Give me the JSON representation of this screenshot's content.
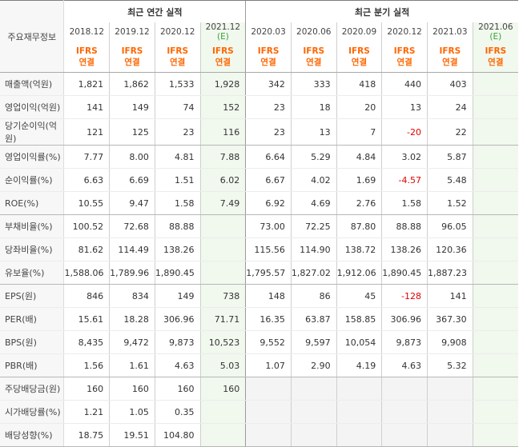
{
  "header": {
    "label_title": "주요재무정보",
    "annual_group": "최근 연간 실적",
    "quarter_group": "최근 분기 실적",
    "ifrs_line1": "IFRS",
    "ifrs_line2": "연결",
    "annual_periods": [
      "2018.12",
      "2019.12",
      "2020.12",
      "2021.12"
    ],
    "annual_est_suffix": "(E)",
    "quarter_periods": [
      "2020.03",
      "2020.06",
      "2020.09",
      "2020.12",
      "2021.03",
      "2021.06"
    ],
    "quarter_est_suffix": "(E)"
  },
  "rows": [
    {
      "label": "매출액(억원)",
      "values": [
        "1,821",
        "1,862",
        "1,533",
        "1,928",
        "342",
        "333",
        "418",
        "440",
        "403",
        ""
      ]
    },
    {
      "label": "영업이익(억원)",
      "values": [
        "141",
        "149",
        "74",
        "152",
        "23",
        "18",
        "20",
        "13",
        "24",
        ""
      ]
    },
    {
      "label": "당기순이익(억원)",
      "values": [
        "121",
        "125",
        "23",
        "116",
        "23",
        "13",
        "7",
        "-20",
        "22",
        ""
      ]
    },
    {
      "label": "영업이익률(%)",
      "values": [
        "7.77",
        "8.00",
        "4.81",
        "7.88",
        "6.64",
        "5.29",
        "4.84",
        "3.02",
        "5.87",
        ""
      ]
    },
    {
      "label": "순이익률(%)",
      "values": [
        "6.63",
        "6.69",
        "1.51",
        "6.02",
        "6.67",
        "4.02",
        "1.69",
        "-4.57",
        "5.48",
        ""
      ]
    },
    {
      "label": "ROE(%)",
      "values": [
        "10.55",
        "9.47",
        "1.58",
        "7.49",
        "6.92",
        "4.69",
        "2.76",
        "1.58",
        "1.52",
        ""
      ]
    },
    {
      "label": "부채비율(%)",
      "values": [
        "100.52",
        "72.68",
        "88.88",
        "",
        "73.00",
        "72.25",
        "87.80",
        "88.88",
        "96.05",
        ""
      ]
    },
    {
      "label": "당좌비율(%)",
      "values": [
        "81.62",
        "114.49",
        "138.26",
        "",
        "115.56",
        "114.90",
        "138.72",
        "138.26",
        "120.36",
        ""
      ]
    },
    {
      "label": "유보율(%)",
      "values": [
        "1,588.06",
        "1,789.96",
        "1,890.45",
        "",
        "1,795.57",
        "1,827.02",
        "1,912.06",
        "1,890.45",
        "1,887.23",
        ""
      ]
    },
    {
      "label": "EPS(원)",
      "values": [
        "846",
        "834",
        "149",
        "738",
        "148",
        "86",
        "45",
        "-128",
        "141",
        ""
      ]
    },
    {
      "label": "PER(배)",
      "values": [
        "15.61",
        "18.28",
        "306.96",
        "71.71",
        "16.35",
        "63.87",
        "158.85",
        "306.96",
        "367.30",
        ""
      ]
    },
    {
      "label": "BPS(원)",
      "values": [
        "8,435",
        "9,472",
        "9,873",
        "10,523",
        "9,552",
        "9,597",
        "10,054",
        "9,873",
        "9,908",
        ""
      ]
    },
    {
      "label": "PBR(배)",
      "values": [
        "1.56",
        "1.61",
        "4.63",
        "5.03",
        "1.07",
        "2.90",
        "4.19",
        "4.63",
        "5.32",
        ""
      ]
    },
    {
      "label": "주당배당금(원)",
      "values": [
        "160",
        "160",
        "160",
        "160",
        "",
        "",
        "",
        "",
        "",
        ""
      ]
    },
    {
      "label": "시가배당률(%)",
      "values": [
        "1.21",
        "1.05",
        "0.35",
        "",
        "",
        "",
        "",
        "",
        "",
        ""
      ]
    },
    {
      "label": "배당성향(%)",
      "values": [
        "18.75",
        "19.51",
        "104.80",
        "",
        "",
        "",
        "",
        "",
        "",
        ""
      ]
    }
  ],
  "colors": {
    "ifrs": "#ff6600",
    "negative": "#e10000",
    "estimate_bg": "#f1f8ee",
    "estimate_tag": "#3aa03a"
  }
}
